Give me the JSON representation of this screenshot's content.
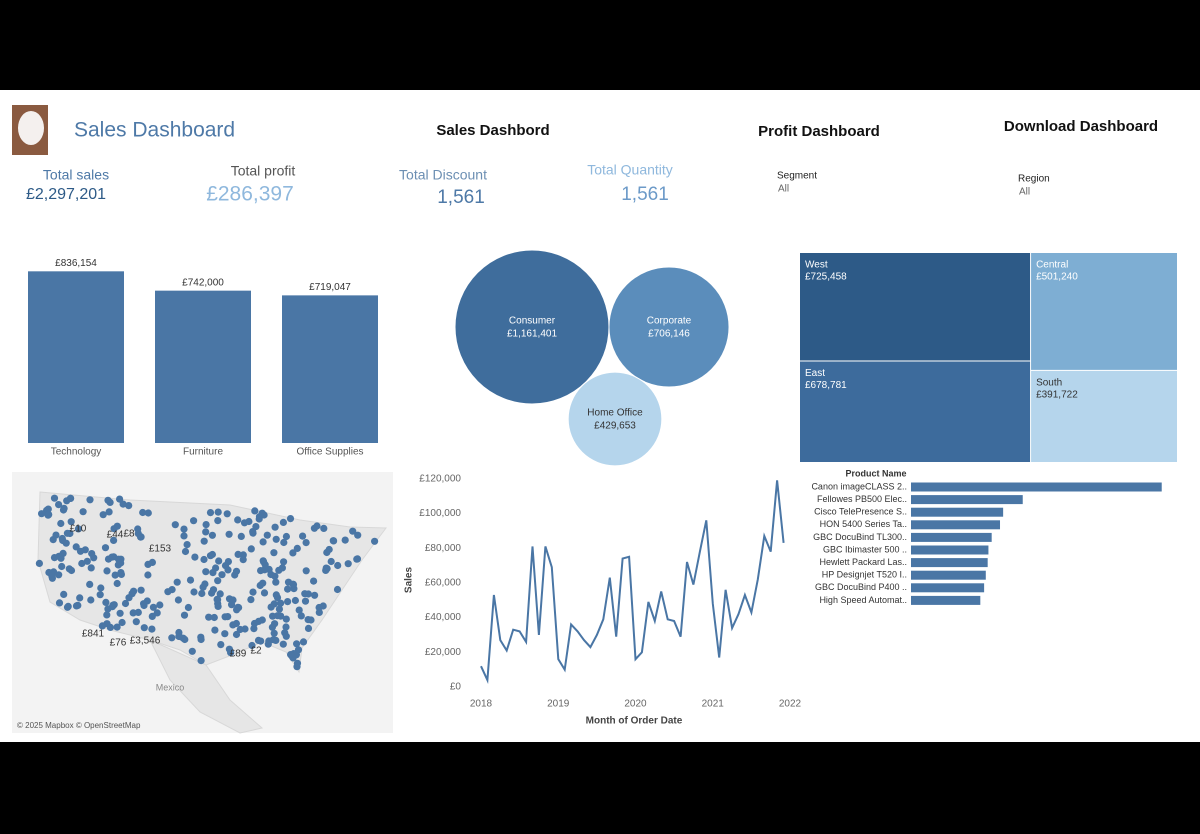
{
  "header": {
    "title": "Sales Dashboard",
    "nav": [
      "Sales Dashbord",
      "Profit Dashboard",
      "Download Dashboard"
    ]
  },
  "kpis": [
    {
      "label": "Total sales",
      "value": "£2,297,201"
    },
    {
      "label": "Total profit",
      "value": "£286,397"
    },
    {
      "label": "Total Discount",
      "value": "1,561"
    },
    {
      "label": "Total Quantity",
      "value": "1,561"
    }
  ],
  "filters": [
    {
      "label": "Segment",
      "value": "All"
    },
    {
      "label": "Region",
      "value": "All"
    }
  ],
  "chart_data": [
    {
      "type": "bar",
      "categories": [
        "Technology",
        "Furniture",
        "Office Supplies"
      ],
      "values": [
        836154,
        742000,
        719047
      ],
      "value_labels": [
        "£836,154",
        "£742,000",
        "£719,047"
      ],
      "color": "#4a76a5",
      "ylim": [
        0,
        940000
      ]
    },
    {
      "type": "bubble",
      "categories": [
        "Consumer",
        "Corporate",
        "Home Office"
      ],
      "values": [
        1161401,
        706146,
        429653
      ],
      "value_labels": [
        "£1,161,401",
        "£706,146",
        "£429,653"
      ],
      "colors": [
        "#3f6d9c",
        "#5b8dbb",
        "#b5d5ec"
      ]
    },
    {
      "type": "treemap",
      "categories": [
        "West",
        "East",
        "Central",
        "South"
      ],
      "values": [
        725458,
        678781,
        501240,
        391722
      ],
      "value_labels": [
        "£725,458",
        "£678,781",
        "£501,240",
        "£391,722"
      ],
      "colors": [
        "#2d5a87",
        "#3d6b9c",
        "#7eaed3",
        "#b5d5ec"
      ]
    },
    {
      "type": "map",
      "labels": [
        "£10",
        "£44",
        "£8",
        "£153",
        "£841",
        "£76",
        "£3,546",
        "£89",
        "£2"
      ],
      "places": [
        "Mexico"
      ],
      "attribution": "© 2025 Mapbox © OpenStreetMap",
      "color": "#4a76a5"
    },
    {
      "type": "line",
      "xlabel": "Month of Order Date",
      "ylabel": "Sales",
      "color": "#4a76a5",
      "grid": false,
      "x": [
        "2018-01",
        "2018-02",
        "2018-03",
        "2018-04",
        "2018-05",
        "2018-06",
        "2018-07",
        "2018-08",
        "2018-09",
        "2018-10",
        "2018-11",
        "2018-12",
        "2019-01",
        "2019-02",
        "2019-03",
        "2019-04",
        "2019-05",
        "2019-06",
        "2019-07",
        "2019-08",
        "2019-09",
        "2019-10",
        "2019-11",
        "2019-12",
        "2020-01",
        "2020-02",
        "2020-03",
        "2020-04",
        "2020-05",
        "2020-06",
        "2020-07",
        "2020-08",
        "2020-09",
        "2020-10",
        "2020-11",
        "2020-12",
        "2021-01",
        "2021-02",
        "2021-03",
        "2021-04",
        "2021-05",
        "2021-06",
        "2021-07",
        "2021-08",
        "2021-09",
        "2021-10",
        "2021-11",
        "2021-12"
      ],
      "values": [
        12000,
        4000,
        53000,
        27000,
        21000,
        33000,
        32000,
        26000,
        81000,
        30000,
        81000,
        69000,
        16000,
        10000,
        36000,
        32000,
        27000,
        23000,
        30000,
        39000,
        63000,
        29000,
        74000,
        75000,
        16000,
        20000,
        49000,
        38000,
        55000,
        39000,
        38000,
        29000,
        72000,
        59000,
        78000,
        96000,
        48000,
        17000,
        56000,
        34000,
        42000,
        53000,
        43000,
        62000,
        87000,
        78000,
        119000,
        83000
      ],
      "xticks": [
        "2018",
        "2019",
        "2020",
        "2021",
        "2022"
      ],
      "ylim": [
        0,
        125000
      ],
      "yticks": [
        {
          "value": 0,
          "label": "£0"
        },
        {
          "value": 20000,
          "label": "£20,000"
        },
        {
          "value": 40000,
          "label": "£40,000"
        },
        {
          "value": 60000,
          "label": "£60,000"
        },
        {
          "value": 80000,
          "label": "£80,000"
        },
        {
          "value": 100000,
          "label": "£100,000"
        },
        {
          "value": 120000,
          "label": "£120,000"
        }
      ]
    },
    {
      "type": "hbar",
      "column_header": "Product Name",
      "color": "#4a76a5",
      "xlim": [
        0,
        65600
      ],
      "categories": [
        "Canon imageCLASS 2..",
        "Fellowes PB500 Elec..",
        "Cisco TelePresence S..",
        "HON 5400 Series Ta..",
        "GBC DocuBind TL300..",
        "GBC Ibimaster 500 ..",
        "Hewlett Packard Las..",
        "HP Designjet T520 I..",
        "GBC DocuBind P400 ..",
        "High Speed Automat.."
      ],
      "values": [
        61600,
        27453,
        22638,
        21870,
        19823,
        19024,
        18840,
        18375,
        17965,
        17030
      ]
    }
  ]
}
